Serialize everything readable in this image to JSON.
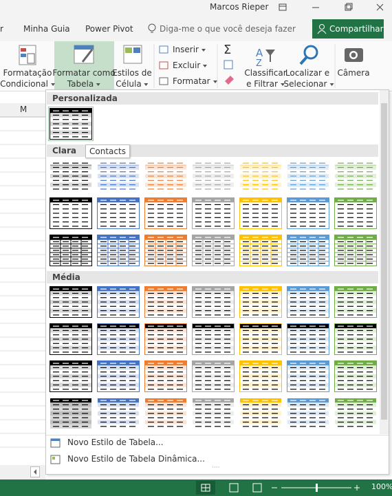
{
  "title_bar": {
    "user": "Marcos Rieper"
  },
  "tabs": [
    "r",
    "Minha Guia",
    "Power Pivot"
  ],
  "tell_me": "Diga-me o que você deseja fazer",
  "share": "Compartilhar",
  "ribbon": [
    [
      "Formatação",
      "Condicional"
    ],
    [
      "Formatar como",
      "Tabela"
    ],
    [
      "Estilos de",
      "Célula"
    ],
    [
      "Classificar",
      "e Filtrar"
    ],
    [
      "Localizar e",
      "Selecionar"
    ],
    [
      "Câmera"
    ]
  ],
  "cells": [
    "Inserir",
    "Excluir",
    "Formatar"
  ],
  "column": "M",
  "gallery": {
    "sections": [
      "Personalizada",
      "Clara",
      "Média"
    ],
    "tooltip": "Contacts",
    "menu": [
      "Novo Estilo de Tabela...",
      "Novo Estilo de Tabela Dinâmica..."
    ]
  },
  "zoom": "100%"
}
